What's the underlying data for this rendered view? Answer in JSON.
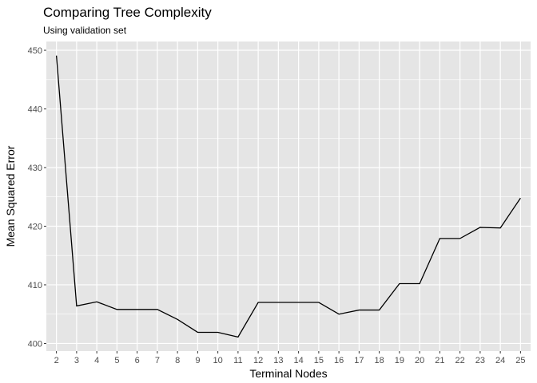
{
  "chart_data": {
    "type": "line",
    "title": "Comparing Tree Complexity",
    "subtitle": "Using validation set",
    "xlabel": "Terminal Nodes",
    "ylabel": "Mean Squared Error",
    "x": [
      2,
      3,
      4,
      5,
      6,
      7,
      8,
      9,
      10,
      11,
      12,
      13,
      14,
      15,
      16,
      17,
      18,
      19,
      20,
      21,
      22,
      23,
      24,
      25
    ],
    "y": [
      449.1,
      406.4,
      407.1,
      405.8,
      405.8,
      405.8,
      404.1,
      401.9,
      401.9,
      401.1,
      407.0,
      407.0,
      407.0,
      407.0,
      405.0,
      405.7,
      405.7,
      410.2,
      410.2,
      417.9,
      417.9,
      419.8,
      419.7,
      424.8
    ],
    "x_ticks": [
      2,
      3,
      4,
      5,
      6,
      7,
      8,
      9,
      10,
      11,
      12,
      13,
      14,
      15,
      16,
      17,
      18,
      19,
      20,
      21,
      22,
      23,
      24,
      25
    ],
    "y_ticks": [
      400,
      410,
      420,
      430,
      440,
      450
    ],
    "xlim": [
      1.5,
      25.5
    ],
    "ylim": [
      398.7,
      451.5
    ],
    "grid": true,
    "colors": {
      "panel": "#e5e5e5",
      "grid": "#ffffff",
      "line": "#000000",
      "tick_text": "#4d4d4d"
    }
  }
}
